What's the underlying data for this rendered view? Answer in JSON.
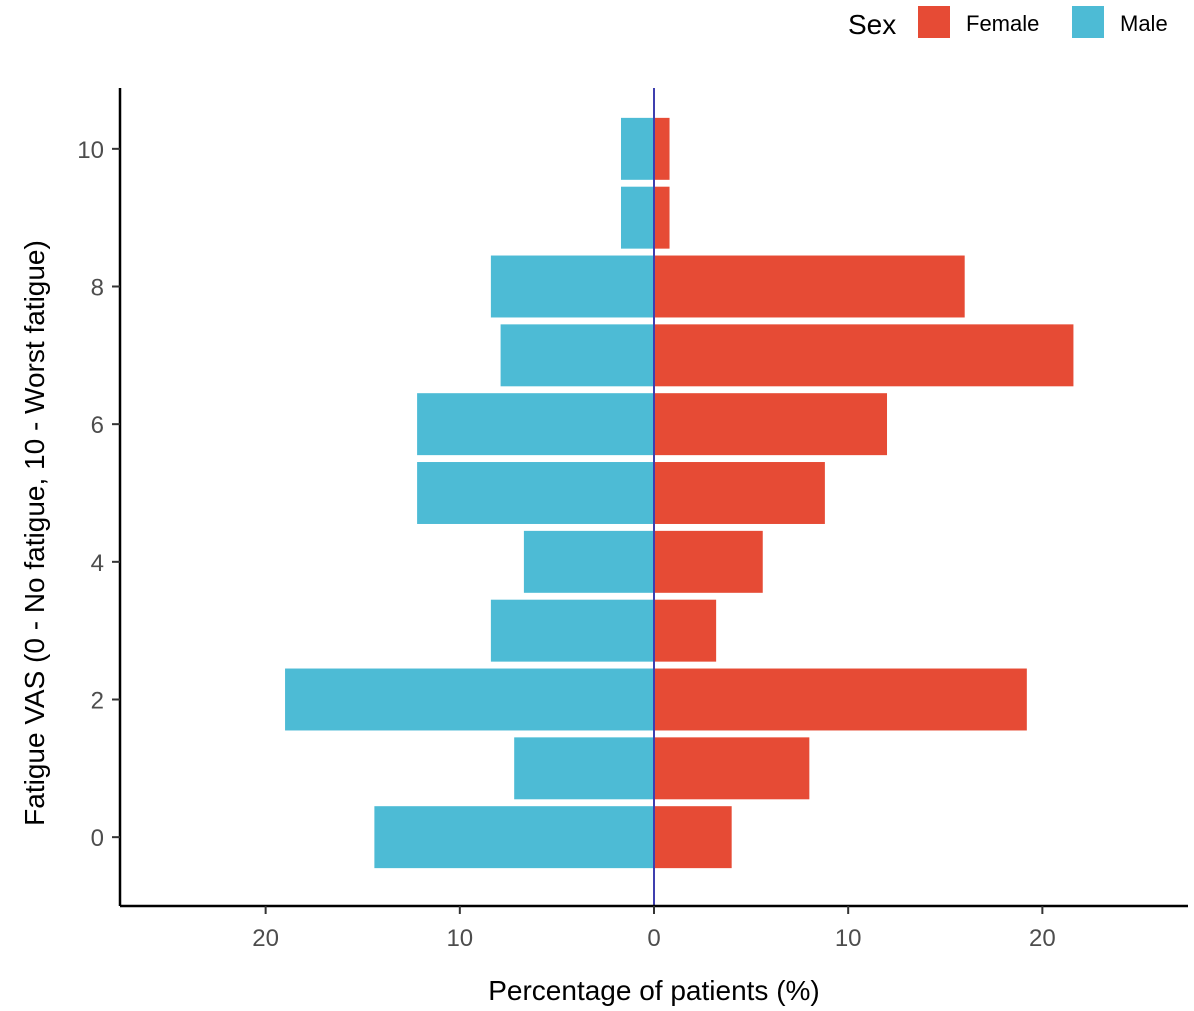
{
  "chart_data": {
    "type": "bar",
    "orientation": "horizontal",
    "layout": "diverging",
    "xlabel": "Percentage of patients (%)",
    "ylabel": "Fatigue VAS (0 - No fatigue, 10 - Worst fatigue)",
    "categories": [
      0,
      1,
      2,
      3,
      4,
      5,
      6,
      7,
      8,
      9,
      10
    ],
    "series": [
      {
        "name": "Female",
        "side": "right",
        "color": "#E64B35",
        "values": [
          4.0,
          8.0,
          19.2,
          3.2,
          5.6,
          8.8,
          12.0,
          21.6,
          16.0,
          0.8,
          0.8
        ]
      },
      {
        "name": "Male",
        "side": "left",
        "color": "#4DBBD5",
        "values": [
          14.4,
          7.2,
          19.0,
          8.4,
          6.7,
          12.2,
          12.2,
          7.9,
          8.4,
          1.7,
          1.7
        ]
      }
    ],
    "xlim": [
      -27.5,
      27.5
    ],
    "ylim": [
      -1,
      11
    ],
    "x_ticks": [
      -20,
      -10,
      0,
      10,
      20
    ],
    "x_tick_labels": [
      "20",
      "10",
      "0",
      "10",
      "20"
    ],
    "y_ticks": [
      0,
      2,
      4,
      6,
      8,
      10
    ],
    "y_tick_labels": [
      "0",
      "2",
      "4",
      "6",
      "8",
      "10"
    ],
    "grid": false,
    "zero_line_color": "#3F3FAF",
    "legend": {
      "title": "Sex",
      "position": "top-right",
      "entries": [
        {
          "label": "Female",
          "color": "#E64B35"
        },
        {
          "label": "Male",
          "color": "#4DBBD5"
        }
      ]
    }
  }
}
